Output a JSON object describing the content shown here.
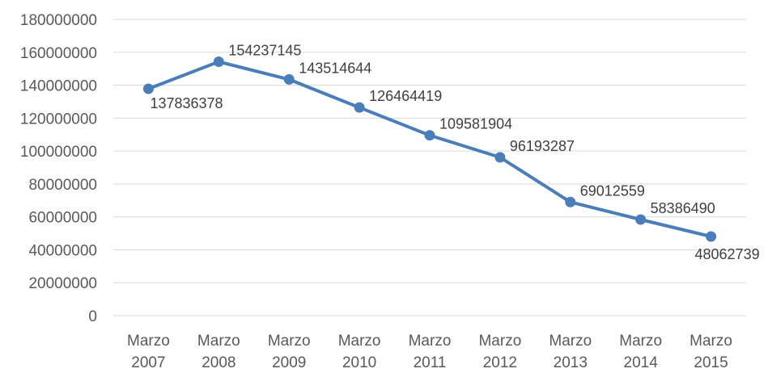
{
  "chart_data": {
    "type": "line",
    "title": "",
    "xlabel": "",
    "ylabel": "",
    "categories": [
      [
        "Marzo",
        "2007"
      ],
      [
        "Marzo",
        "2008"
      ],
      [
        "Marzo",
        "2009"
      ],
      [
        "Marzo",
        "2010"
      ],
      [
        "Marzo",
        "2011"
      ],
      [
        "Marzo",
        "2012"
      ],
      [
        "Marzo",
        "2013"
      ],
      [
        "Marzo",
        "2014"
      ],
      [
        "Marzo",
        "2015"
      ]
    ],
    "series": [
      {
        "values": [
          137836378,
          154237145,
          143514644,
          126464419,
          109581904,
          96193287,
          69012559,
          58386490,
          48062739
        ],
        "color": "#4a7ebb"
      }
    ],
    "ylim": [
      0,
      180000000
    ],
    "yticks": [
      "0",
      "20000000",
      "40000000",
      "60000000",
      "80000000",
      "100000000",
      "120000000",
      "140000000",
      "160000000",
      "180000000"
    ],
    "grid": true,
    "legend": "none",
    "data_labels": true
  }
}
